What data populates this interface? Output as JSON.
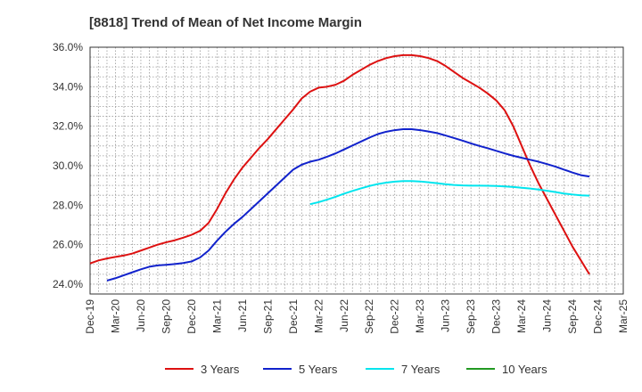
{
  "chart_data": {
    "type": "line",
    "title": "[8818]  Trend of Mean of Net Income Margin",
    "xlabel": "",
    "ylabel": "",
    "x_ticks": [
      "Dec-19",
      "Mar-20",
      "Jun-20",
      "Sep-20",
      "Dec-20",
      "Mar-21",
      "Jun-21",
      "Sep-21",
      "Dec-21",
      "Mar-22",
      "Jun-22",
      "Sep-22",
      "Dec-22",
      "Mar-23",
      "Jun-23",
      "Sep-23",
      "Dec-23",
      "Mar-24",
      "Jun-24",
      "Sep-24",
      "Dec-24",
      "Mar-25"
    ],
    "y_ticks": [
      "24.0%",
      "26.0%",
      "28.0%",
      "30.0%",
      "32.0%",
      "34.0%",
      "36.0%"
    ],
    "ylim": [
      23.5,
      36.0
    ],
    "grid": true,
    "legend_position": "bottom",
    "series": [
      {
        "name": "3 Years",
        "color": "#dd1111",
        "points": [
          [
            "Dec-19",
            25.05
          ],
          [
            "Jan-20",
            25.2
          ],
          [
            "Feb-20",
            25.3
          ],
          [
            "Mar-20",
            25.38
          ],
          [
            "Apr-20",
            25.45
          ],
          [
            "May-20",
            25.55
          ],
          [
            "Jun-20",
            25.7
          ],
          [
            "Jul-20",
            25.85
          ],
          [
            "Aug-20",
            26.0
          ],
          [
            "Sep-20",
            26.12
          ],
          [
            "Oct-20",
            26.22
          ],
          [
            "Nov-20",
            26.35
          ],
          [
            "Dec-20",
            26.5
          ],
          [
            "Jan-21",
            26.7
          ],
          [
            "Feb-21",
            27.1
          ],
          [
            "Mar-21",
            27.8
          ],
          [
            "Apr-21",
            28.6
          ],
          [
            "May-21",
            29.3
          ],
          [
            "Jun-21",
            29.9
          ],
          [
            "Jul-21",
            30.4
          ],
          [
            "Aug-21",
            30.9
          ],
          [
            "Sep-21",
            31.35
          ],
          [
            "Oct-21",
            31.85
          ],
          [
            "Nov-21",
            32.35
          ],
          [
            "Dec-21",
            32.85
          ],
          [
            "Jan-22",
            33.4
          ],
          [
            "Feb-22",
            33.75
          ],
          [
            "Mar-22",
            33.95
          ],
          [
            "Apr-22",
            34.0
          ],
          [
            "May-22",
            34.1
          ],
          [
            "Jun-22",
            34.3
          ],
          [
            "Jul-22",
            34.6
          ],
          [
            "Aug-22",
            34.85
          ],
          [
            "Sep-22",
            35.1
          ],
          [
            "Oct-22",
            35.3
          ],
          [
            "Nov-22",
            35.45
          ],
          [
            "Dec-22",
            35.55
          ],
          [
            "Jan-23",
            35.6
          ],
          [
            "Feb-23",
            35.6
          ],
          [
            "Mar-23",
            35.55
          ],
          [
            "Apr-23",
            35.45
          ],
          [
            "May-23",
            35.3
          ],
          [
            "Jun-23",
            35.05
          ],
          [
            "Jul-23",
            34.75
          ],
          [
            "Aug-23",
            34.45
          ],
          [
            "Sep-23",
            34.2
          ],
          [
            "Oct-23",
            33.95
          ],
          [
            "Nov-23",
            33.65
          ],
          [
            "Dec-23",
            33.3
          ],
          [
            "Jan-24",
            32.8
          ],
          [
            "Feb-24",
            32.0
          ],
          [
            "Mar-24",
            31.0
          ],
          [
            "Apr-24",
            30.0
          ],
          [
            "May-24",
            29.1
          ],
          [
            "Jun-24",
            28.3
          ],
          [
            "Jul-24",
            27.5
          ],
          [
            "Aug-24",
            26.7
          ],
          [
            "Sep-24",
            25.9
          ],
          [
            "Oct-24",
            25.2
          ],
          [
            "Nov-24",
            24.5
          ]
        ]
      },
      {
        "name": "5 Years",
        "color": "#1122cc",
        "points": [
          [
            "Feb-20",
            24.18
          ],
          [
            "Mar-20",
            24.3
          ],
          [
            "Apr-20",
            24.45
          ],
          [
            "May-20",
            24.6
          ],
          [
            "Jun-20",
            24.75
          ],
          [
            "Jul-20",
            24.88
          ],
          [
            "Aug-20",
            24.95
          ],
          [
            "Sep-20",
            24.98
          ],
          [
            "Oct-20",
            25.02
          ],
          [
            "Nov-20",
            25.07
          ],
          [
            "Dec-20",
            25.15
          ],
          [
            "Jan-21",
            25.35
          ],
          [
            "Feb-21",
            25.7
          ],
          [
            "Mar-21",
            26.2
          ],
          [
            "Apr-21",
            26.65
          ],
          [
            "May-21",
            27.05
          ],
          [
            "Jun-21",
            27.4
          ],
          [
            "Jul-21",
            27.8
          ],
          [
            "Aug-21",
            28.2
          ],
          [
            "Sep-21",
            28.6
          ],
          [
            "Oct-21",
            29.0
          ],
          [
            "Nov-21",
            29.4
          ],
          [
            "Dec-21",
            29.8
          ],
          [
            "Jan-22",
            30.05
          ],
          [
            "Feb-22",
            30.2
          ],
          [
            "Mar-22",
            30.3
          ],
          [
            "Apr-22",
            30.45
          ],
          [
            "May-22",
            30.62
          ],
          [
            "Jun-22",
            30.82
          ],
          [
            "Jul-22",
            31.02
          ],
          [
            "Aug-22",
            31.22
          ],
          [
            "Sep-22",
            31.42
          ],
          [
            "Oct-22",
            31.6
          ],
          [
            "Nov-22",
            31.72
          ],
          [
            "Dec-22",
            31.8
          ],
          [
            "Jan-23",
            31.85
          ],
          [
            "Feb-23",
            31.85
          ],
          [
            "Mar-23",
            31.8
          ],
          [
            "Apr-23",
            31.73
          ],
          [
            "May-23",
            31.65
          ],
          [
            "Jun-23",
            31.53
          ],
          [
            "Jul-23",
            31.4
          ],
          [
            "Aug-23",
            31.27
          ],
          [
            "Sep-23",
            31.13
          ],
          [
            "Oct-23",
            31.0
          ],
          [
            "Nov-23",
            30.88
          ],
          [
            "Dec-23",
            30.75
          ],
          [
            "Jan-24",
            30.62
          ],
          [
            "Feb-24",
            30.5
          ],
          [
            "Mar-24",
            30.4
          ],
          [
            "Apr-24",
            30.3
          ],
          [
            "May-24",
            30.2
          ],
          [
            "Jun-24",
            30.08
          ],
          [
            "Jul-24",
            29.95
          ],
          [
            "Aug-24",
            29.8
          ],
          [
            "Sep-24",
            29.65
          ],
          [
            "Oct-24",
            29.52
          ],
          [
            "Nov-24",
            29.45
          ]
        ]
      },
      {
        "name": "7 Years",
        "color": "#00e5ee",
        "points": [
          [
            "Feb-22",
            28.05
          ],
          [
            "Mar-22",
            28.15
          ],
          [
            "Apr-22",
            28.28
          ],
          [
            "May-22",
            28.42
          ],
          [
            "Jun-22",
            28.58
          ],
          [
            "Jul-22",
            28.72
          ],
          [
            "Aug-22",
            28.85
          ],
          [
            "Sep-22",
            28.97
          ],
          [
            "Oct-22",
            29.07
          ],
          [
            "Nov-22",
            29.14
          ],
          [
            "Dec-22",
            29.19
          ],
          [
            "Jan-23",
            29.22
          ],
          [
            "Feb-23",
            29.22
          ],
          [
            "Mar-23",
            29.2
          ],
          [
            "Apr-23",
            29.16
          ],
          [
            "May-23",
            29.11
          ],
          [
            "Jun-23",
            29.06
          ],
          [
            "Jul-23",
            29.02
          ],
          [
            "Aug-23",
            29.0
          ],
          [
            "Sep-23",
            28.99
          ],
          [
            "Oct-23",
            28.99
          ],
          [
            "Nov-23",
            28.98
          ],
          [
            "Dec-23",
            28.97
          ],
          [
            "Jan-24",
            28.95
          ],
          [
            "Feb-24",
            28.92
          ],
          [
            "Mar-24",
            28.88
          ],
          [
            "Apr-24",
            28.84
          ],
          [
            "May-24",
            28.79
          ],
          [
            "Jun-24",
            28.73
          ],
          [
            "Jul-24",
            28.66
          ],
          [
            "Aug-24",
            28.59
          ],
          [
            "Sep-24",
            28.54
          ],
          [
            "Oct-24",
            28.5
          ],
          [
            "Nov-24",
            28.48
          ]
        ]
      },
      {
        "name": "10 Years",
        "color": "#229922",
        "points": []
      }
    ]
  }
}
